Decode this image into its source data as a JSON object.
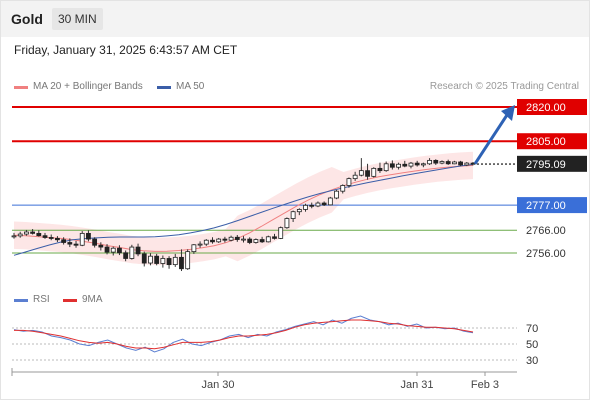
{
  "header": {
    "instrument": "Gold",
    "timeframe": "30 MIN"
  },
  "timestamp": "Friday, January 31, 2025 6:43:57 AM CET",
  "legend": {
    "ma20_label": "MA 20 + Bollinger Bands",
    "ma50_label": "MA 50",
    "credit": "Research © 2025 Trading Central"
  },
  "rsi_legend": {
    "rsi_label": "RSI",
    "ma_label": "9MA"
  },
  "colors": {
    "ma20": "#f08080",
    "ma50": "#3b5ea8",
    "resistance": "#e00000",
    "pivot": "#3a6fd8",
    "support": "#6aaa4a",
    "forecast_arrow": "#2e62b5",
    "rsi": "#5b7fd1",
    "rsi_ma": "#e03030",
    "band": "#fde0e0"
  },
  "chart_data": [
    {
      "type": "candlestick",
      "xlabel": "",
      "ylabel": "",
      "x_ticks": [
        "Jan 30",
        "Jan 31",
        "Feb 3"
      ],
      "price_labels": {
        "last": "2795.09"
      },
      "levels": [
        {
          "label": "2820.00",
          "value": 2820.0,
          "kind": "resistance"
        },
        {
          "label": "2805.00",
          "value": 2805.0,
          "kind": "resistance"
        },
        {
          "label": "2777.00",
          "value": 2777.0,
          "kind": "pivot"
        },
        {
          "label": "2766.00",
          "value": 2766.0,
          "kind": "support"
        },
        {
          "label": "2756.00",
          "value": 2756.0,
          "kind": "support"
        }
      ],
      "candles": [
        {
          "o": 2763.2,
          "h": 2764.8,
          "l": 2762.3,
          "c": 2763.5
        },
        {
          "o": 2763.5,
          "h": 2765.3,
          "l": 2762.7,
          "c": 2764.3
        },
        {
          "o": 2764.3,
          "h": 2766.1,
          "l": 2763.6,
          "c": 2765.2
        },
        {
          "o": 2765.2,
          "h": 2766.5,
          "l": 2764.1,
          "c": 2764.6
        },
        {
          "o": 2764.6,
          "h": 2765.9,
          "l": 2763.2,
          "c": 2763.6
        },
        {
          "o": 2763.6,
          "h": 2764.8,
          "l": 2762.2,
          "c": 2762.8
        },
        {
          "o": 2762.8,
          "h": 2764.1,
          "l": 2761.6,
          "c": 2762.4
        },
        {
          "o": 2762.4,
          "h": 2763.4,
          "l": 2760.8,
          "c": 2761.8
        },
        {
          "o": 2761.8,
          "h": 2762.9,
          "l": 2759.7,
          "c": 2760.6
        },
        {
          "o": 2760.6,
          "h": 2762.4,
          "l": 2758.6,
          "c": 2759.9
        },
        {
          "o": 2759.9,
          "h": 2761.3,
          "l": 2758.3,
          "c": 2759.4
        },
        {
          "o": 2759.4,
          "h": 2765.6,
          "l": 2759.0,
          "c": 2764.6
        },
        {
          "o": 2764.6,
          "h": 2765.9,
          "l": 2761.1,
          "c": 2762.1
        },
        {
          "o": 2762.1,
          "h": 2762.9,
          "l": 2758.4,
          "c": 2759.4
        },
        {
          "o": 2759.4,
          "h": 2760.7,
          "l": 2757.1,
          "c": 2758.6
        },
        {
          "o": 2758.6,
          "h": 2759.9,
          "l": 2755.4,
          "c": 2756.4
        },
        {
          "o": 2756.4,
          "h": 2758.8,
          "l": 2754.9,
          "c": 2758.1
        },
        {
          "o": 2758.1,
          "h": 2759.4,
          "l": 2755.1,
          "c": 2756.1
        },
        {
          "o": 2756.1,
          "h": 2757.1,
          "l": 2752.4,
          "c": 2753.6
        },
        {
          "o": 2753.6,
          "h": 2759.6,
          "l": 2753.1,
          "c": 2758.6
        },
        {
          "o": 2758.6,
          "h": 2760.1,
          "l": 2754.6,
          "c": 2755.6
        },
        {
          "o": 2755.6,
          "h": 2756.6,
          "l": 2750.1,
          "c": 2751.6
        },
        {
          "o": 2751.6,
          "h": 2755.9,
          "l": 2750.6,
          "c": 2754.6
        },
        {
          "o": 2754.6,
          "h": 2755.6,
          "l": 2750.6,
          "c": 2751.4
        },
        {
          "o": 2751.4,
          "h": 2754.9,
          "l": 2749.6,
          "c": 2753.6
        },
        {
          "o": 2753.6,
          "h": 2754.6,
          "l": 2749.1,
          "c": 2750.9
        },
        {
          "o": 2750.9,
          "h": 2755.6,
          "l": 2749.9,
          "c": 2754.1
        },
        {
          "o": 2754.1,
          "h": 2757.6,
          "l": 2748.1,
          "c": 2749.1
        },
        {
          "o": 2749.1,
          "h": 2757.6,
          "l": 2748.6,
          "c": 2756.6
        },
        {
          "o": 2756.6,
          "h": 2759.9,
          "l": 2755.6,
          "c": 2759.6
        },
        {
          "o": 2759.6,
          "h": 2761.1,
          "l": 2758.3,
          "c": 2759.9
        },
        {
          "o": 2759.9,
          "h": 2762.1,
          "l": 2759.1,
          "c": 2761.6
        },
        {
          "o": 2761.6,
          "h": 2762.9,
          "l": 2760.1,
          "c": 2760.9
        },
        {
          "o": 2760.9,
          "h": 2762.6,
          "l": 2760.4,
          "c": 2762.1
        },
        {
          "o": 2762.1,
          "h": 2763.1,
          "l": 2760.6,
          "c": 2761.6
        },
        {
          "o": 2761.6,
          "h": 2763.6,
          "l": 2761.1,
          "c": 2762.9
        },
        {
          "o": 2762.9,
          "h": 2763.9,
          "l": 2760.9,
          "c": 2761.9
        },
        {
          "o": 2761.9,
          "h": 2763.4,
          "l": 2760.6,
          "c": 2762.1
        },
        {
          "o": 2762.1,
          "h": 2762.9,
          "l": 2759.9,
          "c": 2760.6
        },
        {
          "o": 2760.6,
          "h": 2762.4,
          "l": 2760.1,
          "c": 2761.9
        },
        {
          "o": 2761.9,
          "h": 2763.1,
          "l": 2760.4,
          "c": 2760.9
        },
        {
          "o": 2760.9,
          "h": 2763.6,
          "l": 2760.6,
          "c": 2763.1
        },
        {
          "o": 2763.1,
          "h": 2764.4,
          "l": 2761.9,
          "c": 2762.4
        },
        {
          "o": 2762.4,
          "h": 2767.6,
          "l": 2762.1,
          "c": 2767.1
        },
        {
          "o": 2767.1,
          "h": 2771.6,
          "l": 2766.6,
          "c": 2771.1
        },
        {
          "o": 2771.1,
          "h": 2774.6,
          "l": 2769.6,
          "c": 2774.1
        },
        {
          "o": 2774.1,
          "h": 2775.6,
          "l": 2772.6,
          "c": 2775.1
        },
        {
          "o": 2775.1,
          "h": 2777.6,
          "l": 2774.1,
          "c": 2776.9
        },
        {
          "o": 2776.9,
          "h": 2778.1,
          "l": 2775.6,
          "c": 2776.6
        },
        {
          "o": 2776.6,
          "h": 2778.6,
          "l": 2776.1,
          "c": 2777.9
        },
        {
          "o": 2777.9,
          "h": 2778.6,
          "l": 2776.6,
          "c": 2777.1
        },
        {
          "o": 2777.1,
          "h": 2780.6,
          "l": 2776.9,
          "c": 2780.1
        },
        {
          "o": 2780.1,
          "h": 2783.6,
          "l": 2779.6,
          "c": 2783.1
        },
        {
          "o": 2783.1,
          "h": 2786.1,
          "l": 2782.1,
          "c": 2785.6
        },
        {
          "o": 2785.6,
          "h": 2789.1,
          "l": 2784.6,
          "c": 2788.6
        },
        {
          "o": 2788.6,
          "h": 2791.6,
          "l": 2787.6,
          "c": 2790.1
        },
        {
          "o": 2790.1,
          "h": 2797.6,
          "l": 2789.6,
          "c": 2792.1
        },
        {
          "o": 2792.1,
          "h": 2795.1,
          "l": 2788.1,
          "c": 2789.6
        },
        {
          "o": 2789.6,
          "h": 2793.6,
          "l": 2789.1,
          "c": 2793.1
        },
        {
          "o": 2793.1,
          "h": 2795.6,
          "l": 2791.1,
          "c": 2792.1
        },
        {
          "o": 2792.1,
          "h": 2796.1,
          "l": 2791.6,
          "c": 2795.1
        },
        {
          "o": 2795.1,
          "h": 2796.6,
          "l": 2792.6,
          "c": 2793.6
        },
        {
          "o": 2793.6,
          "h": 2795.6,
          "l": 2792.6,
          "c": 2794.9
        },
        {
          "o": 2794.9,
          "h": 2796.4,
          "l": 2793.6,
          "c": 2794.1
        },
        {
          "o": 2794.1,
          "h": 2795.9,
          "l": 2793.1,
          "c": 2795.4
        },
        {
          "o": 2795.4,
          "h": 2796.4,
          "l": 2793.9,
          "c": 2794.6
        },
        {
          "o": 2794.6,
          "h": 2795.6,
          "l": 2793.6,
          "c": 2795.1
        },
        {
          "o": 2795.1,
          "h": 2797.6,
          "l": 2794.6,
          "c": 2796.6
        },
        {
          "o": 2796.6,
          "h": 2797.1,
          "l": 2794.6,
          "c": 2795.4
        },
        {
          "o": 2795.4,
          "h": 2796.6,
          "l": 2794.9,
          "c": 2796.1
        },
        {
          "o": 2796.1,
          "h": 2796.9,
          "l": 2794.6,
          "c": 2795.1
        },
        {
          "o": 2795.1,
          "h": 2796.4,
          "l": 2794.9,
          "c": 2795.9
        },
        {
          "o": 2795.9,
          "h": 2796.4,
          "l": 2794.1,
          "c": 2794.6
        },
        {
          "o": 2794.6,
          "h": 2795.9,
          "l": 2794.1,
          "c": 2795.4
        },
        {
          "o": 2795.4,
          "h": 2795.9,
          "l": 2794.4,
          "c": 2795.09
        }
      ],
      "ma20": [
        2763.8,
        2763.6,
        2763.2,
        2762.8,
        2762.4,
        2761.8,
        2761.0,
        2760.2,
        2759.2,
        2758.4,
        2757.5,
        2757.0,
        2756.7,
        2756.8,
        2757.1,
        2757.6,
        2758.3,
        2759.2,
        2760.5,
        2762.4,
        2764.8,
        2767.6,
        2770.6,
        2773.6,
        2776.5,
        2779.2,
        2781.6,
        2783.7,
        2785.5,
        2787.0,
        2788.3,
        2789.4,
        2790.3,
        2791.1,
        2791.9,
        2792.6,
        2793.2,
        2793.7,
        2794.1,
        2794.4
      ],
      "ma50": [
        2755.0,
        2756.5,
        2758.0,
        2759.5,
        2760.8,
        2761.8,
        2762.3,
        2762.6,
        2762.9,
        2763.0,
        2763.0,
        2763.0,
        2763.1,
        2763.5,
        2764.0,
        2764.8,
        2765.8,
        2767.0,
        2768.5,
        2770.2,
        2772.0,
        2773.8,
        2775.6,
        2777.3,
        2779.0,
        2780.6,
        2782.1,
        2783.4,
        2784.6,
        2785.7,
        2786.8,
        2787.8,
        2788.8,
        2789.8,
        2790.7,
        2791.6,
        2792.5,
        2793.4,
        2794.2,
        2794.8
      ],
      "rsi": {
        "levels": [
          70,
          50,
          30
        ],
        "rsi": [
          68,
          66,
          67,
          65,
          60,
          58,
          55,
          50,
          48,
          52,
          55,
          50,
          45,
          42,
          46,
          40,
          44,
          52,
          56,
          50,
          48,
          52,
          55,
          60,
          62,
          58,
          62,
          60,
          65,
          68,
          72,
          75,
          78,
          74,
          80,
          76,
          82,
          85,
          80,
          78,
          74,
          76,
          72,
          75,
          70,
          71,
          69,
          70,
          66,
          64
        ],
        "ma": [
          67,
          67,
          66,
          64,
          62,
          60,
          57,
          54,
          52,
          51,
          52,
          50,
          47,
          45,
          45,
          44,
          46,
          49,
          52,
          52,
          52,
          53,
          55,
          58,
          60,
          60,
          61,
          62,
          64,
          67,
          71,
          74,
          76,
          77,
          78,
          79,
          80,
          80,
          79,
          78,
          76,
          75,
          73,
          72,
          71,
          71,
          70,
          69,
          67,
          65
        ]
      }
    }
  ]
}
